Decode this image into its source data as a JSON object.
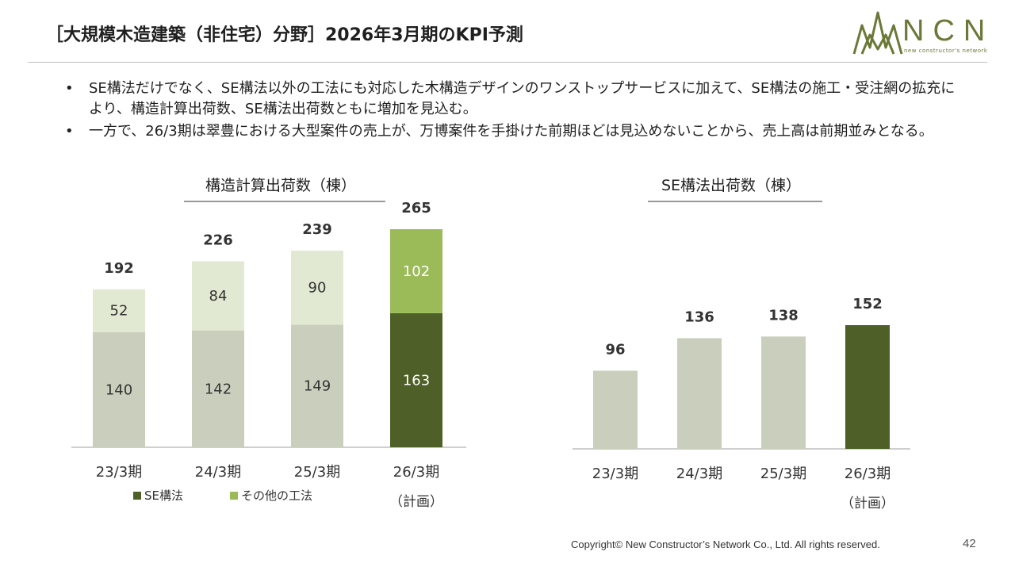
{
  "page": {
    "title": "［大規模木造建築（非住宅）分野］2026年3月期のKPI予測",
    "logo_text": "NCN",
    "logo_tagline": "new constructor's network",
    "bullets": [
      "SE構法だけでなく、SE構法以外の工法にも対応した木構造デザインのワンストップサービスに加えて、SE構法の施工・受注網の拡充により、構造計算出荷数、SE構法出荷数ともに増加を見込む。",
      "一方で、26/3期は翠豊における大型案件の売上が、万博案件を手掛けた前期ほどは見込めないことから、売上高は前期並みとなる。"
    ],
    "bullet_marker": "•",
    "footer": "Copyright© New Constructor’s Network Co., Ltd. All rights reserved.",
    "page_number": "42"
  },
  "colors": {
    "se_past": "#c9cfbc",
    "other_past": "#e2e9d2",
    "se_plan": "#4e6028",
    "other_plan": "#9bbb59",
    "text_dark": "#333333",
    "text_light": "#ffffff",
    "axis": "#bfbfbf",
    "logo": "#6b7838"
  },
  "chart_data": [
    {
      "type": "bar",
      "stacked": true,
      "title": "構造計算出荷数（棟）",
      "categories": [
        "23/3期",
        "24/3期",
        "25/3期",
        "26/3期"
      ],
      "category_sublabels": [
        "",
        "",
        "",
        "（計画）"
      ],
      "series": [
        {
          "name": "SE構法",
          "values": [
            140,
            142,
            149,
            163
          ]
        },
        {
          "name": "その他の工法",
          "values": [
            52,
            84,
            90,
            102
          ]
        }
      ],
      "totals": [
        192,
        226,
        239,
        265
      ],
      "ylim": [
        0,
        265
      ],
      "grid": false,
      "legend": "bottom-left"
    },
    {
      "type": "bar",
      "title": "SE構法出荷数（棟）",
      "categories": [
        "23/3期",
        "24/3期",
        "25/3期",
        "26/3期"
      ],
      "category_sublabels": [
        "",
        "",
        "",
        "（計画）"
      ],
      "values": [
        96,
        136,
        138,
        152
      ],
      "ylim": [
        0,
        152
      ],
      "grid": false
    }
  ]
}
